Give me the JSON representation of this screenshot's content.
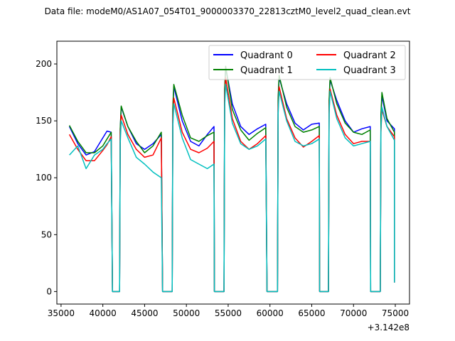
{
  "chart_data": {
    "type": "line",
    "title": "Data file: modeM0/AS1A07_054T01_9000003370_22813cztM0_level2_quad_clean.evt",
    "xlabel": "",
    "ylabel": "",
    "x_offset_label": "+3.142e8",
    "xlim": [
      34500,
      76700
    ],
    "ylim": [
      -11,
      220
    ],
    "xticks": [
      35000,
      40000,
      45000,
      50000,
      55000,
      60000,
      65000,
      70000,
      75000
    ],
    "yticks": [
      0,
      50,
      100,
      150,
      200
    ],
    "legend_location": "top-right",
    "legend_columns": 2,
    "segments": [
      {
        "x_start": 36000,
        "x_end": 41100,
        "peak": null
      },
      {
        "x_start": 42100,
        "x_end": 47100,
        "peak": 163
      },
      {
        "x_start": 48400,
        "x_end": 53300,
        "peak": 182
      },
      {
        "x_start": 54600,
        "x_end": 59600,
        "peak": 198
      },
      {
        "x_start": 61000,
        "x_end": 65900,
        "peak": 190
      },
      {
        "x_start": 67100,
        "x_end": 72000,
        "peak": 188
      },
      {
        "x_start": 73300,
        "x_end": 74900,
        "peak": 175
      }
    ],
    "series": [
      {
        "name": "Quadrant 0",
        "color": "#0000ff",
        "segment_points": [
          [
            [
              36000,
              145
            ],
            [
              37000,
              130
            ],
            [
              38000,
              120
            ],
            [
              39000,
              123
            ],
            [
              40000,
              135
            ],
            [
              40500,
              141
            ],
            [
              41000,
              140
            ]
          ],
          [
            [
              42200,
              162
            ],
            [
              43000,
              145
            ],
            [
              44000,
              130
            ],
            [
              45000,
              125
            ],
            [
              46000,
              130
            ],
            [
              47000,
              138
            ]
          ],
          [
            [
              48500,
              180
            ],
            [
              49500,
              150
            ],
            [
              50500,
              132
            ],
            [
              51500,
              128
            ],
            [
              52500,
              138
            ],
            [
              53300,
              145
            ]
          ],
          [
            [
              54700,
              197
            ],
            [
              55500,
              165
            ],
            [
              56500,
              145
            ],
            [
              57500,
              138
            ],
            [
              58500,
              143
            ],
            [
              59500,
              147
            ]
          ],
          [
            [
              61100,
              188
            ],
            [
              62000,
              165
            ],
            [
              63000,
              148
            ],
            [
              64000,
              142
            ],
            [
              65000,
              147
            ],
            [
              65900,
              148
            ]
          ],
          [
            [
              67200,
              186
            ],
            [
              68000,
              168
            ],
            [
              69000,
              150
            ],
            [
              70000,
              140
            ],
            [
              71000,
              143
            ],
            [
              72000,
              145
            ]
          ],
          [
            [
              73400,
              172
            ],
            [
              74000,
              150
            ],
            [
              74900,
              143
            ]
          ]
        ]
      },
      {
        "name": "Quadrant 1",
        "color": "#008000",
        "segment_points": [
          [
            [
              36000,
              146
            ],
            [
              37000,
              132
            ],
            [
              38000,
              122
            ],
            [
              39000,
              122
            ],
            [
              40000,
              128
            ],
            [
              40500,
              134
            ],
            [
              41000,
              140
            ]
          ],
          [
            [
              42200,
              163
            ],
            [
              43000,
              145
            ],
            [
              44000,
              132
            ],
            [
              45000,
              122
            ],
            [
              46000,
              128
            ],
            [
              47000,
              140
            ]
          ],
          [
            [
              48500,
              182
            ],
            [
              49500,
              155
            ],
            [
              50500,
              135
            ],
            [
              51500,
              132
            ],
            [
              52500,
              137
            ],
            [
              53300,
              140
            ]
          ],
          [
            [
              54700,
              198
            ],
            [
              55500,
              160
            ],
            [
              56500,
              142
            ],
            [
              57500,
              133
            ],
            [
              58500,
              139
            ],
            [
              59500,
              144
            ]
          ],
          [
            [
              61100,
              190
            ],
            [
              62000,
              162
            ],
            [
              63000,
              145
            ],
            [
              64000,
              140
            ],
            [
              65000,
              142
            ],
            [
              65900,
              145
            ]
          ],
          [
            [
              67200,
              188
            ],
            [
              68000,
              165
            ],
            [
              69000,
              148
            ],
            [
              70000,
              140
            ],
            [
              71000,
              138
            ],
            [
              72000,
              142
            ]
          ],
          [
            [
              73400,
              175
            ],
            [
              74000,
              152
            ],
            [
              74900,
              140
            ]
          ]
        ]
      },
      {
        "name": "Quadrant 2",
        "color": "#ff0000",
        "segment_points": [
          [
            [
              36000,
              138
            ],
            [
              37000,
              125
            ],
            [
              38000,
              115
            ],
            [
              39000,
              115
            ],
            [
              40000,
              124
            ],
            [
              40500,
              129
            ],
            [
              41000,
              136
            ]
          ],
          [
            [
              42200,
              155
            ],
            [
              43000,
              138
            ],
            [
              44000,
              125
            ],
            [
              45000,
              118
            ],
            [
              46000,
              120
            ],
            [
              47000,
              135
            ]
          ],
          [
            [
              48500,
              170
            ],
            [
              49500,
              140
            ],
            [
              50500,
              125
            ],
            [
              51500,
              122
            ],
            [
              52500,
              126
            ],
            [
              53300,
              132
            ]
          ],
          [
            [
              54700,
              188
            ],
            [
              55500,
              152
            ],
            [
              56500,
              132
            ],
            [
              57500,
              125
            ],
            [
              58500,
              130
            ],
            [
              59500,
              137
            ]
          ],
          [
            [
              61100,
              180
            ],
            [
              62000,
              152
            ],
            [
              63000,
              135
            ],
            [
              64000,
              127
            ],
            [
              65000,
              132
            ],
            [
              65900,
              137
            ]
          ],
          [
            [
              67200,
              178
            ],
            [
              68000,
              155
            ],
            [
              69000,
              138
            ],
            [
              70000,
              130
            ],
            [
              71000,
              132
            ],
            [
              72000,
              132
            ]
          ],
          [
            [
              73400,
              160
            ],
            [
              74000,
              145
            ],
            [
              74900,
              136
            ]
          ]
        ]
      },
      {
        "name": "Quadrant 3",
        "color": "#00bfbf",
        "segment_points": [
          [
            [
              36000,
              120
            ],
            [
              37000,
              128
            ],
            [
              38000,
              108
            ],
            [
              39000,
              120
            ],
            [
              40000,
              125
            ],
            [
              40500,
              130
            ],
            [
              41000,
              134
            ]
          ],
          [
            [
              42200,
              150
            ],
            [
              43000,
              135
            ],
            [
              44000,
              118
            ],
            [
              45000,
              112
            ],
            [
              46000,
              105
            ],
            [
              47000,
              100
            ]
          ],
          [
            [
              48500,
              165
            ],
            [
              49500,
              135
            ],
            [
              50500,
              116
            ],
            [
              51500,
              112
            ],
            [
              52500,
              108
            ],
            [
              53300,
              112
            ]
          ],
          [
            [
              54700,
              182
            ],
            [
              55500,
              148
            ],
            [
              56500,
              130
            ],
            [
              57500,
              125
            ],
            [
              58500,
              128
            ],
            [
              59500,
              134
            ]
          ],
          [
            [
              61100,
              176
            ],
            [
              62000,
              150
            ],
            [
              63000,
              132
            ],
            [
              64000,
              128
            ],
            [
              65000,
              130
            ],
            [
              65900,
              134
            ]
          ],
          [
            [
              67200,
              176
            ],
            [
              68000,
              152
            ],
            [
              69000,
              135
            ],
            [
              70000,
              128
            ],
            [
              71000,
              130
            ],
            [
              72000,
              132
            ]
          ],
          [
            [
              73400,
              162
            ],
            [
              74000,
              145
            ],
            [
              74900,
              133
            ]
          ]
        ]
      }
    ]
  }
}
